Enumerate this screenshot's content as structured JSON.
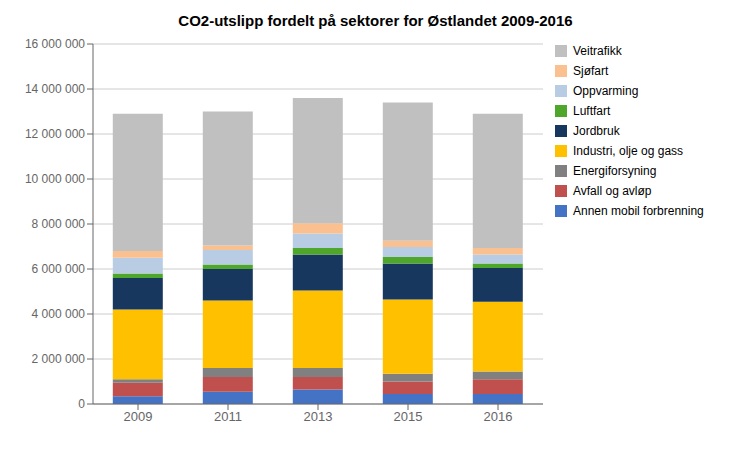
{
  "chart_data": {
    "type": "bar",
    "title": "CO2-utslipp fordelt på sektorer for Østlandet 2009-2016",
    "categories": [
      "2009",
      "2011",
      "2013",
      "2015",
      "2016"
    ],
    "stacked": true,
    "grid": true,
    "legend": "right",
    "series": [
      {
        "name": "Annen mobil forbrenning",
        "color": "#4472C4",
        "values": [
          350000,
          550000,
          650000,
          450000,
          450000
        ]
      },
      {
        "name": "Avfall og avløp",
        "color": "#C0504D",
        "values": [
          600000,
          650000,
          550000,
          550000,
          650000
        ]
      },
      {
        "name": "Energiforsyning",
        "color": "#808080",
        "values": [
          150000,
          400000,
          400000,
          350000,
          350000
        ]
      },
      {
        "name": "Industri, olje og gass",
        "color": "#FFC000",
        "values": [
          3100000,
          3000000,
          3450000,
          3300000,
          3100000
        ]
      },
      {
        "name": "Jordbruk",
        "color": "#17375E",
        "values": [
          1400000,
          1400000,
          1600000,
          1600000,
          1500000
        ]
      },
      {
        "name": "Luftfart",
        "color": "#4EA72A",
        "values": [
          200000,
          200000,
          280000,
          280000,
          200000
        ]
      },
      {
        "name": "Oppvarming",
        "color": "#B8CCE4",
        "values": [
          700000,
          650000,
          650000,
          450000,
          400000
        ]
      },
      {
        "name": "Sjøfart",
        "color": "#FAC090",
        "values": [
          300000,
          200000,
          450000,
          280000,
          280000
        ]
      },
      {
        "name": "Veitrafikk",
        "color": "#C0C0C0",
        "values": [
          6100000,
          5950000,
          5570000,
          6140000,
          5970000
        ]
      }
    ],
    "ylim": [
      0,
      16000000
    ],
    "yticks": [
      0,
      {
        "value": 2000000,
        "label": "2 000 000"
      },
      {
        "value": 4000000,
        "label": "4 000 000"
      },
      {
        "value": 6000000,
        "label": "6 000 000"
      },
      {
        "value": 8000000,
        "label": "8 000 000"
      },
      {
        "value": 10000000,
        "label": "10 000 000"
      },
      {
        "value": 12000000,
        "label": "12 000 000"
      },
      {
        "value": 14000000,
        "label": "14 000 000"
      },
      {
        "value": 16000000,
        "label": "16 000 000"
      }
    ]
  }
}
